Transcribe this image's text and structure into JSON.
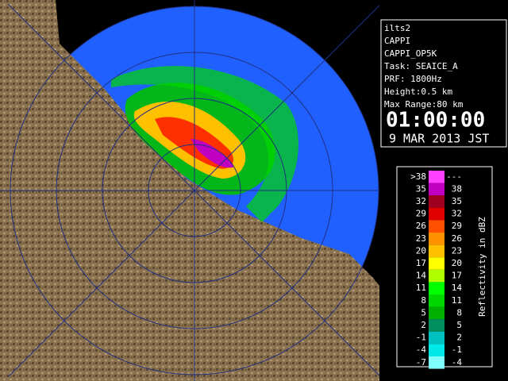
{
  "info": {
    "lines": [
      "ilts2",
      "CAPPI",
      "CAPPI_OP5K",
      "Task: SEAICE_A",
      "PRF: 1800Hz",
      "Height:0.5 km",
      "Max Range:80 km"
    ],
    "time": "01:00:00",
    "date": "9 MAR 2013 JST"
  },
  "legend": {
    "title": "Reflectivity in dBZ",
    "rows": [
      {
        "low": ">38",
        "high": "---",
        "color": "#ff40ff"
      },
      {
        "low": "35",
        "high": "38",
        "color": "#c000c0"
      },
      {
        "low": "32",
        "high": "35",
        "color": "#a00020"
      },
      {
        "low": "29",
        "high": "32",
        "color": "#e00000"
      },
      {
        "low": "26",
        "high": "29",
        "color": "#ff5000"
      },
      {
        "low": "23",
        "high": "26",
        "color": "#ff9000"
      },
      {
        "low": "20",
        "high": "23",
        "color": "#ffc000"
      },
      {
        "low": "17",
        "high": "20",
        "color": "#ffff00"
      },
      {
        "low": "14",
        "high": "17",
        "color": "#b0ff00"
      },
      {
        "low": "11",
        "high": "14",
        "color": "#00ff00"
      },
      {
        "low": "8",
        "high": "11",
        "color": "#00d800"
      },
      {
        "low": "5",
        "high": "8",
        "color": "#00b000"
      },
      {
        "low": "2",
        "high": "5",
        "color": "#009060"
      },
      {
        "low": "-1",
        "high": "2",
        "color": "#00c0c0"
      },
      {
        "low": "-4",
        "high": "-1",
        "color": "#00e8e8"
      },
      {
        "low": "-7",
        "high": "-4",
        "color": "#80ffff"
      }
    ]
  }
}
